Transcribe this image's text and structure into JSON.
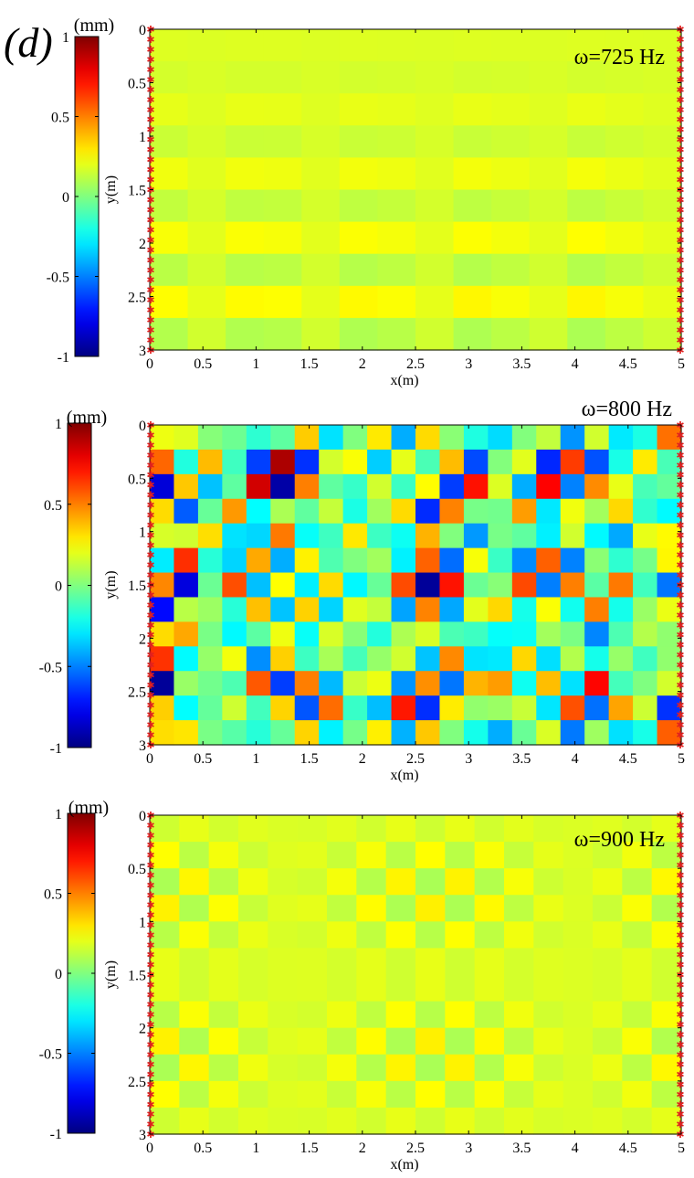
{
  "panel_label": "(d)",
  "chart_data": [
    {
      "type": "heatmap",
      "annotation": "ω=725 Hz",
      "frequency_hz": 725,
      "xlabel": "x(m)",
      "ylabel": "y(m)",
      "xlim": [
        0,
        5
      ],
      "ylim": [
        0,
        3
      ],
      "y_direction": "down",
      "x_ticks": [
        "0",
        "0.5",
        "1",
        "1.5",
        "2",
        "2.5",
        "3",
        "3.5",
        "4",
        "4.5",
        "5"
      ],
      "y_ticks": [
        "0",
        "0.5",
        "1",
        "1.5",
        "2",
        "2.5",
        "3"
      ],
      "colorbar": {
        "unit_label": "(mm)",
        "range": [
          -1,
          1
        ],
        "ticks": [
          "1",
          "0.5",
          "0",
          "-0.5",
          "-1"
        ],
        "colormap": "jet"
      },
      "field": {
        "amplitude": 0.12,
        "nx": 14,
        "ny": 10
      },
      "boundary_markers": {
        "color": "#e02020",
        "sides": [
          "left",
          "right"
        ]
      }
    },
    {
      "type": "heatmap",
      "annotation": "ω=800 Hz",
      "frequency_hz": 800,
      "xlabel": "x(m)",
      "ylabel": "y(m)",
      "xlim": [
        0,
        5
      ],
      "ylim": [
        0,
        3
      ],
      "y_direction": "down",
      "x_ticks": [
        "0",
        "0.5",
        "1",
        "1.5",
        "2",
        "2.5",
        "3",
        "3.5",
        "4",
        "4.5",
        "5"
      ],
      "y_ticks": [
        "0",
        "0.5",
        "1",
        "1.5",
        "2",
        "2.5",
        "3"
      ],
      "colorbar": {
        "unit_label": "(mm)",
        "range": [
          -1,
          1
        ],
        "ticks": [
          "1",
          "0.5",
          "0",
          "-0.5",
          "-1"
        ],
        "colormap": "jet"
      },
      "field": {
        "amplitude": 0.95,
        "nx": 22,
        "ny": 13
      },
      "boundary_markers": {
        "color": "#e02020",
        "sides": [
          "left",
          "right"
        ]
      }
    },
    {
      "type": "heatmap",
      "annotation": "ω=900 Hz",
      "frequency_hz": 900,
      "xlabel": "x(m)",
      "ylabel": "y(m)",
      "xlim": [
        0,
        5
      ],
      "ylim": [
        0,
        3
      ],
      "y_direction": "down",
      "x_ticks": [
        "0",
        "0.5",
        "1",
        "1.5",
        "2",
        "2.5",
        "3",
        "3.5",
        "4",
        "4.5",
        "5"
      ],
      "y_ticks": [
        "0",
        "0.5",
        "1",
        "1.5",
        "2",
        "2.5",
        "3"
      ],
      "colorbar": {
        "unit_label": "(mm)",
        "range": [
          -1,
          1
        ],
        "ticks": [
          "1",
          "0.5",
          "0",
          "-0.5",
          "-1"
        ],
        "colormap": "jet"
      },
      "field": {
        "amplitude": 0.1,
        "nx": 18,
        "ny": 12
      },
      "boundary_markers": {
        "color": "#e02020",
        "sides": [
          "left",
          "right"
        ]
      }
    }
  ]
}
